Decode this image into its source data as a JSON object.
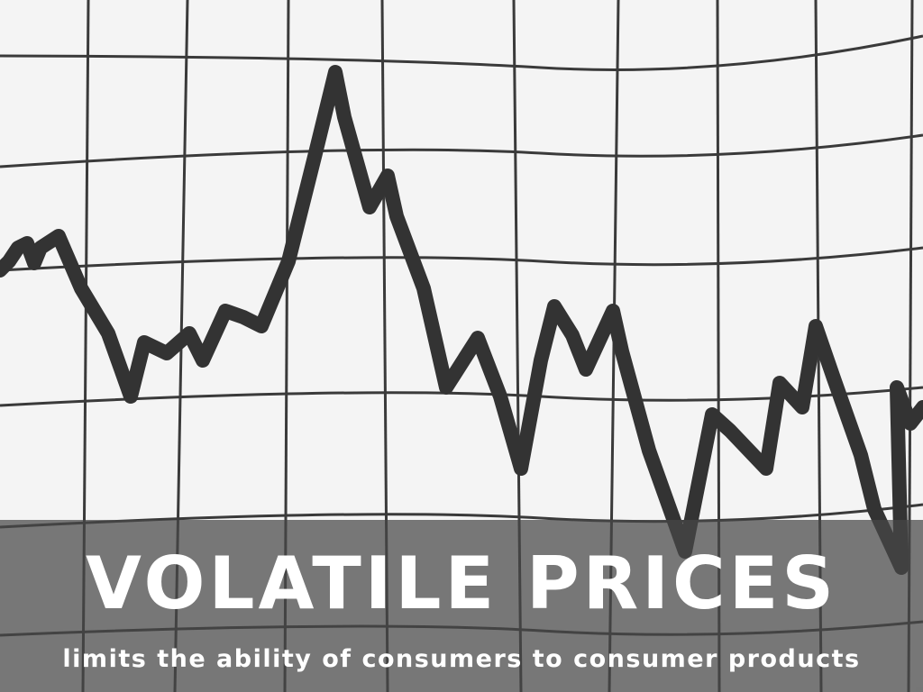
{
  "slide": {
    "title": "VOLATILE PRICES",
    "subtitle": "limits the ability of consumers to consumer products"
  },
  "colors": {
    "background": "#f4f4f4",
    "grid": "#3a3a3a",
    "line": "#333333",
    "band": "#464646",
    "text": "#ffffff"
  }
}
